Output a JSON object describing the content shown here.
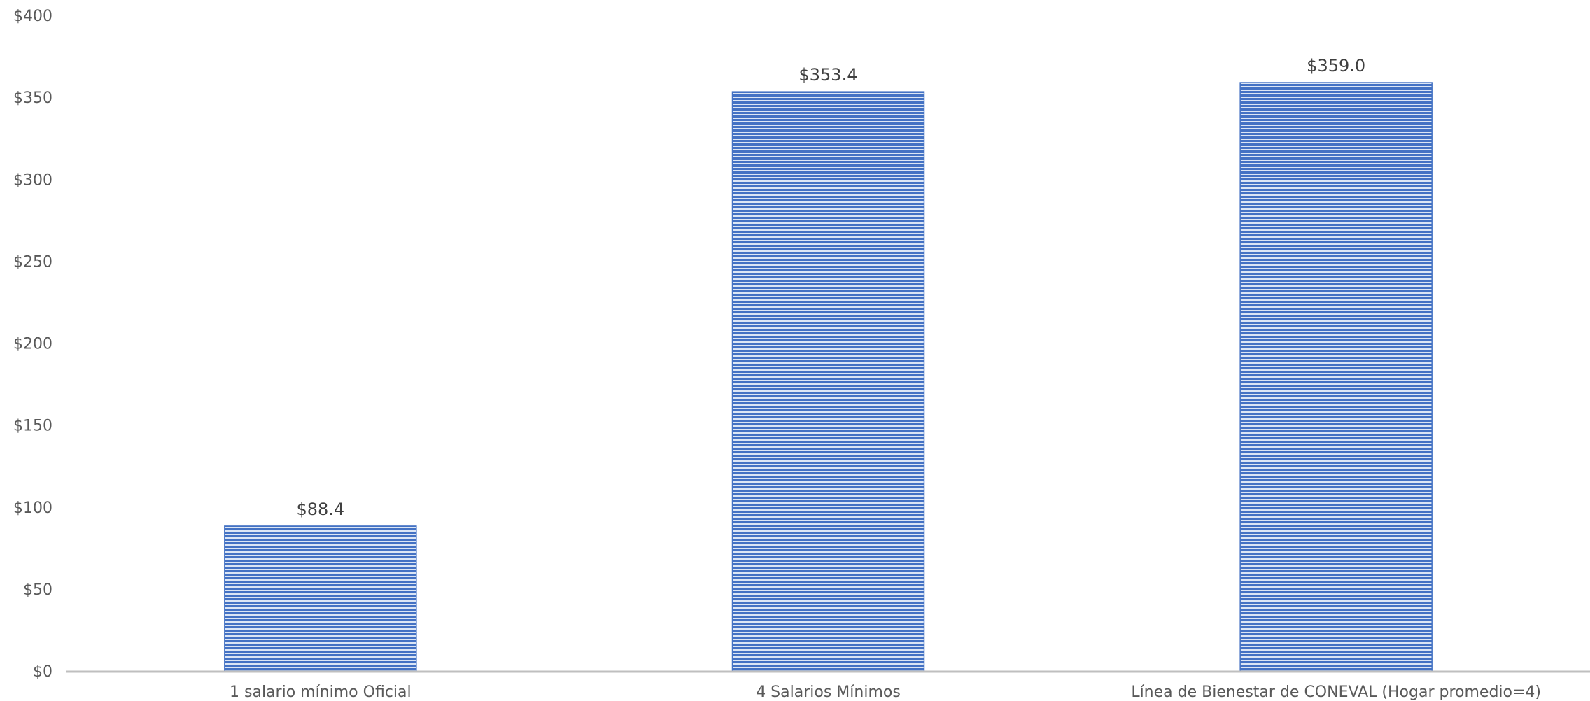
{
  "chart_data": {
    "type": "bar",
    "title": "",
    "xlabel": "",
    "ylabel": "",
    "categories": [
      "1 salario mínimo Oficial",
      "4 Salarios Mínimos",
      "Línea de Bienestar de CONEVAL (Hogar promedio=4)"
    ],
    "values": [
      88.4,
      353.4,
      359.0
    ],
    "data_labels": [
      "$88.4",
      "$353.4",
      "$359.0"
    ],
    "ylim": [
      0,
      400
    ],
    "yticks": [
      0,
      50,
      100,
      150,
      200,
      250,
      300,
      350,
      400
    ],
    "ytick_labels": [
      "$0",
      "$50",
      "$100",
      "$150",
      "$200",
      "$250",
      "$300",
      "$350",
      "$400"
    ],
    "grid": false,
    "legend": "none",
    "bar_color": "#4472C4",
    "bar_pattern": "horizontal-lines",
    "axis_color": "#BFBFBF"
  }
}
